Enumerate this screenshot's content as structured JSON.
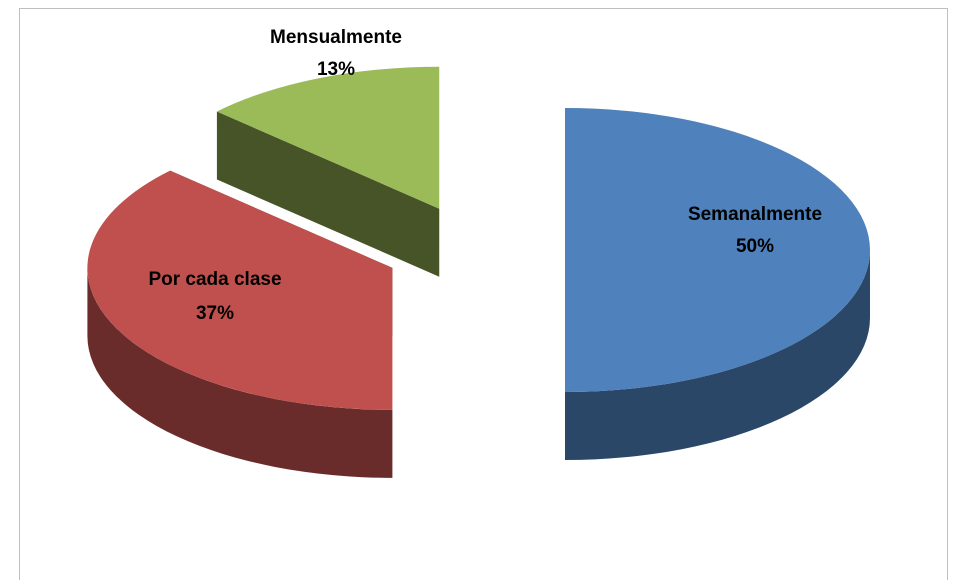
{
  "chart_data": {
    "type": "pie",
    "categories": [
      "Semanalmente",
      "Por cada clase",
      "Mensualmente"
    ],
    "values": [
      50,
      37,
      13
    ],
    "value_labels": [
      "50%",
      "37%",
      "13%"
    ],
    "colors": [
      "#4f81bd",
      "#c0504d",
      "#9bbb59"
    ],
    "exploded": true,
    "three_d": true
  }
}
